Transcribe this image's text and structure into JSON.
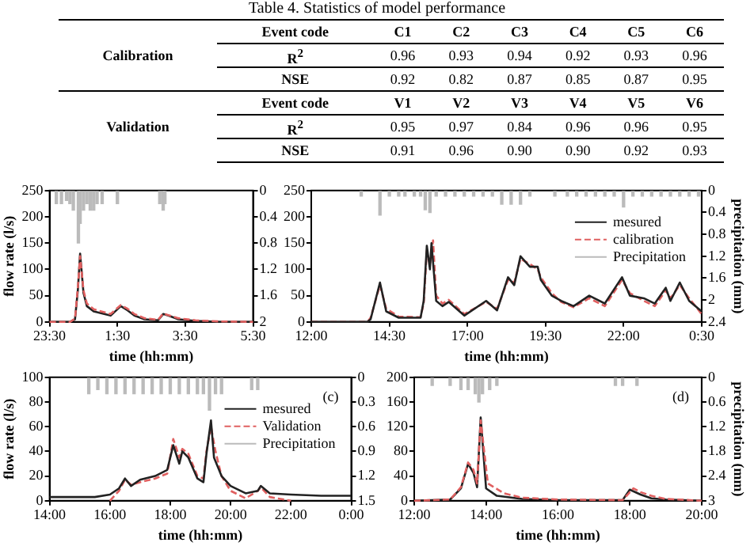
{
  "chart_data": [
    {
      "type": "other",
      "title": "Table 4. Statistics of model performance",
      "annotations": [
        "Calibration",
        "Event code",
        "C1",
        "C2",
        "C3",
        "C4",
        "C5",
        "C6",
        "R$^{2}$",
        "0.96",
        "0.93",
        "0.94",
        "0.92",
        "0.93",
        "0.96",
        "NSE",
        "0.92",
        "0.82",
        "0.87",
        "0.85",
        "0.87",
        "0.95",
        "Validation",
        "Event code",
        "V1",
        "V2",
        "V3",
        "V4",
        "V5",
        "V6",
        "R$^{2}$",
        "0.95",
        "0.97",
        "0.84",
        "0.96",
        "0.96",
        "0.95",
        "NSE",
        "0.91",
        "0.96",
        "0.90",
        "0.90",
        "0.92",
        "0.93"
      ]
    },
    {
      "type": "line",
      "xlabel": "time (hh:mm)",
      "ylabel": "flow rate (l/s)",
      "marker": "none",
      "xlim": [
        "--01-01T23:30",
        "--01-02T05:30"
      ],
      "xticks": [
        {
          "value": "--01-01T23:30",
          "label": "23:30"
        },
        {
          "value": "--01-02T01:30",
          "label": "1:30"
        },
        {
          "value": "--01-02T03:30",
          "label": "3:30"
        },
        {
          "value": "--01-02T05:30",
          "label": "5:30"
        }
      ],
      "ylim": [
        0,
        250
      ],
      "yticks": [
        0,
        50,
        100,
        150,
        200,
        250
      ],
      "y2lim": [
        2,
        0
      ],
      "y2ticks": [
        0,
        0.4,
        0.8,
        1.2,
        1.6,
        2
      ],
      "series": [
        {
          "type": "bar",
          "axis": "y2",
          "color": "#bbbbbb",
          "x": [
            "--01-01T23:42",
            "--01-01T23:51",
            "--01-02T00:00",
            "--01-02T00:06",
            "--01-02T00:12",
            "--01-02T00:18",
            "--01-02T00:21",
            "--01-02T00:24",
            "--01-02T00:30",
            "--01-02T00:36",
            "--01-02T00:42",
            "--01-02T00:48",
            "--01-02T00:54",
            "--01-02T01:03",
            "--01-02T01:30",
            "--01-02T02:45",
            "--01-02T02:51",
            "--01-02T02:54"
          ],
          "values": [
            0.2,
            0.2,
            0.15,
            0.2,
            0.3,
            null,
            0.8,
            0.5,
            0.3,
            0.2,
            0.3,
            0.3,
            0.2,
            0.2,
            0.2,
            0.2,
            0.3,
            0.2
          ]
        },
        {
          "color": "#e06060",
          "line_style": "dashed",
          "x": [
            "--01-01T23:30",
            "--01-02T00:06",
            "--01-02T00:15",
            "--01-02T00:20",
            "--01-02T00:24",
            "--01-02T00:30",
            "--01-02T00:36",
            "--01-02T00:48",
            "--01-02T01:18",
            "--01-02T01:36",
            "--01-02T01:48",
            "--01-02T02:00",
            "--01-02T02:18",
            "--01-02T02:42",
            "--01-02T02:51",
            "--01-02T03:00",
            "--01-02T03:18",
            "--01-02T03:48",
            "--01-02T04:30",
            "--01-02T05:30"
          ],
          "values": [
            0,
            0,
            6,
            65,
            125,
            60,
            35,
            24,
            15,
            32,
            25,
            15,
            7,
            4,
            16,
            13,
            7,
            3,
            1,
            0
          ]
        },
        {
          "color": "#222222",
          "line_style": "solid",
          "x": [
            "--01-01T23:30",
            "--01-02T00:06",
            "--01-02T00:15",
            "--01-02T00:20",
            "--01-02T00:24",
            "--01-02T00:30",
            "--01-02T00:36",
            "--01-02T00:48",
            "--01-02T01:18",
            "--01-02T01:36",
            "--01-02T01:48",
            "--01-02T02:00",
            "--01-02T02:18",
            "--01-02T02:42",
            "--01-02T02:51",
            "--01-02T03:00",
            "--01-02T03:18",
            "--01-02T03:48",
            "--01-02T04:30",
            "--01-02T05:30"
          ],
          "values": [
            0,
            0,
            5,
            60,
            130,
            55,
            30,
            20,
            12,
            30,
            22,
            12,
            5,
            3,
            15,
            12,
            5,
            2,
            0,
            0
          ]
        }
      ]
    },
    {
      "type": "line",
      "xlabel": "time (hh:mm)",
      "y2label": "precipitation (mm)",
      "marker": "none",
      "legend": "top right",
      "xlim": [
        "--01-01T12:00",
        "--01-02T00:30"
      ],
      "xticks": [
        {
          "value": "--01-01T12:00",
          "label": "12:00"
        },
        {
          "value": "--01-01T14:30",
          "label": "14:30"
        },
        {
          "value": "--01-01T17:00",
          "label": "17:00"
        },
        {
          "value": "--01-01T19:30",
          "label": "19:30"
        },
        {
          "value": "--01-01T22:00",
          "label": "22:00"
        },
        {
          "value": "--01-02T00:30",
          "label": "0:30"
        }
      ],
      "ylim": [
        0,
        250
      ],
      "yticks": [
        0,
        50,
        100,
        150,
        200,
        250
      ],
      "y2lim": [
        2.4,
        0
      ],
      "y2ticks": [
        0,
        0.4,
        0.8,
        1.2,
        1.6,
        2,
        2.4
      ],
      "series": [
        {
          "name": "mesured",
          "color": "#222222",
          "line_style": "solid",
          "x": [
            "--01-01T12:00",
            "--01-01T13:48",
            "--01-01T13:54",
            "--01-01T14:12",
            "--01-01T14:24",
            "--01-01T14:48",
            "--01-01T15:30",
            "--01-01T15:36",
            "--01-01T15:42",
            "--01-01T15:48",
            "--01-01T15:51",
            "--01-01T16:00",
            "--01-01T16:12",
            "--01-01T16:24",
            "--01-01T16:54",
            "--01-01T17:36",
            "--01-01T17:57",
            "--01-01T18:18",
            "--01-01T18:30",
            "--01-01T18:42",
            "--01-01T19:00",
            "--01-01T19:15",
            "--01-01T19:21",
            "--01-01T19:42",
            "--01-01T20:00",
            "--01-01T20:24",
            "--01-01T20:54",
            "--01-01T21:24",
            "--01-01T21:57",
            "--01-01T22:12",
            "--01-01T22:39",
            "--01-01T23:00",
            "--01-01T23:21",
            "--01-01T23:30",
            "--01-01T23:48",
            "--01-02T00:06",
            "--01-02T00:30"
          ],
          "values": [
            0,
            0,
            5,
            75,
            20,
            8,
            8,
            40,
            145,
            100,
            150,
            40,
            30,
            38,
            12,
            40,
            22,
            85,
            70,
            125,
            105,
            105,
            80,
            50,
            40,
            30,
            50,
            35,
            85,
            50,
            45,
            35,
            65,
            40,
            75,
            40,
            20
          ]
        },
        {
          "name": "calibration",
          "color": "#e06060",
          "line_style": "dashed",
          "x": [
            "--01-01T12:00",
            "--01-01T13:48",
            "--01-01T13:54",
            "--01-01T14:12",
            "--01-01T14:24",
            "--01-01T14:48",
            "--01-01T15:30",
            "--01-01T15:36",
            "--01-01T15:42",
            "--01-01T15:48",
            "--01-01T15:54",
            "--01-01T16:00",
            "--01-01T16:12",
            "--01-01T16:24",
            "--01-01T16:54",
            "--01-01T17:36",
            "--01-01T17:57",
            "--01-01T18:18",
            "--01-01T18:30",
            "--01-01T18:42",
            "--01-01T19:00",
            "--01-01T19:15",
            "--01-01T19:21",
            "--01-01T19:42",
            "--01-01T20:00",
            "--01-01T20:24",
            "--01-01T20:54",
            "--01-01T21:24",
            "--01-01T21:57",
            "--01-01T22:12",
            "--01-01T22:39",
            "--01-01T23:00",
            "--01-01T23:21",
            "--01-01T23:30",
            "--01-01T23:48",
            "--01-02T00:06",
            "--01-02T00:30"
          ],
          "values": [
            0,
            0,
            8,
            70,
            25,
            10,
            9,
            35,
            135,
            110,
            155,
            50,
            35,
            42,
            15,
            38,
            25,
            80,
            75,
            120,
            110,
            100,
            85,
            55,
            38,
            28,
            45,
            30,
            80,
            55,
            40,
            30,
            60,
            45,
            70,
            45,
            15
          ]
        },
        {
          "name": "Precipitation",
          "type": "bar",
          "axis": "y2",
          "color": "#bbbbbb",
          "x": [
            "--01-01T13:36",
            "--01-01T14:12",
            "--01-01T14:30",
            "--01-01T14:48",
            "--01-01T15:00",
            "--01-01T15:18",
            "--01-01T15:30",
            "--01-01T15:39",
            "--01-01T15:48",
            "--01-01T16:00",
            "--01-01T16:18",
            "--01-01T16:36",
            "--01-01T16:54",
            "--01-01T17:12",
            "--01-01T17:30",
            "--01-01T17:48",
            "--01-01T18:06",
            "--01-01T18:24",
            "--01-01T18:42",
            "--01-01T19:00",
            "--01-01T19:48",
            "--01-01T20:12",
            "--01-01T20:30",
            "--01-01T20:48",
            "--01-01T21:06",
            "--01-01T21:24",
            "--01-01T21:42",
            "--01-01T22:00",
            "--01-01T22:18",
            "--01-01T22:36",
            "--01-01T22:54",
            "--01-01T23:12",
            "--01-01T23:30",
            "--01-01T23:48",
            "--01-02T00:06",
            "--01-02T00:24"
          ],
          "values": [
            0.1,
            0.45,
            0.1,
            0.1,
            0.1,
            0.1,
            0.1,
            0.35,
            0.4,
            0.1,
            0.1,
            0.1,
            0.1,
            0.1,
            0.1,
            0.1,
            0.25,
            0.25,
            0.25,
            0.1,
            0.1,
            0.1,
            0.1,
            0.1,
            0.1,
            0.1,
            0.1,
            0.3,
            0.1,
            0.1,
            0.1,
            0.1,
            0.1,
            0.1,
            0.1,
            0.1
          ]
        }
      ]
    },
    {
      "type": "line",
      "xlabel": "time (hh:mm)",
      "ylabel": "flow rate (l/s)",
      "marker": "none",
      "legend": "top right",
      "annotations": [
        "(c)"
      ],
      "xlim": [
        14,
        24
      ],
      "xticks": [
        {
          "value": 14,
          "label": "14:00"
        },
        {
          "value": 16,
          "label": "16:00"
        },
        {
          "value": 18,
          "label": "18:00"
        },
        {
          "value": 20,
          "label": "20:00"
        },
        {
          "value": 22,
          "label": "22:00"
        },
        {
          "value": 24,
          "label": "0:00"
        }
      ],
      "ylim": [
        0,
        100
      ],
      "yticks": [
        0,
        20,
        40,
        60,
        80,
        100
      ],
      "y2lim": [
        1.5,
        0
      ],
      "y2ticks": [
        0,
        0.3,
        0.6,
        0.9,
        1.2,
        1.5
      ],
      "series": [
        {
          "name": "mesured",
          "color": "#222222",
          "line_style": "solid",
          "x": [
            14,
            15.5,
            16,
            16.3,
            16.5,
            16.7,
            17,
            17.5,
            17.9,
            18.1,
            18.3,
            18.4,
            18.6,
            18.9,
            19.1,
            19.2,
            19.35,
            19.45,
            19.7,
            20,
            20.5,
            20.9,
            21,
            21.3,
            22,
            23,
            24
          ],
          "values": [
            3,
            3,
            5,
            10,
            18,
            12,
            17,
            20,
            25,
            45,
            30,
            40,
            35,
            18,
            15,
            38,
            65,
            35,
            20,
            12,
            6,
            8,
            12,
            6,
            5,
            4,
            4
          ]
        },
        {
          "name": "Validation",
          "color": "#e06060",
          "line_style": "dashed",
          "x": [
            16,
            16.3,
            16.5,
            16.7,
            17,
            17.5,
            17.9,
            18.1,
            18.3,
            18.4,
            18.6,
            18.9,
            19.1,
            19.2,
            19.35,
            19.5,
            19.7,
            20,
            20.5,
            20.9,
            21,
            21.3,
            22
          ],
          "values": [
            0,
            8,
            17,
            13,
            15,
            18,
            22,
            50,
            35,
            42,
            38,
            20,
            18,
            40,
            60,
            40,
            20,
            8,
            2,
            8,
            11,
            3,
            0
          ]
        },
        {
          "name": "Precipitation",
          "type": "bar",
          "axis": "y2",
          "color": "#bbbbbb",
          "x": [
            15.3,
            15.6,
            15.9,
            16.2,
            16.5,
            16.8,
            17.1,
            17.4,
            17.7,
            18.0,
            18.3,
            18.6,
            18.9,
            19.1,
            19.3,
            19.5,
            19.7,
            20.7,
            20.9
          ],
          "values": [
            0.2,
            0.15,
            0.2,
            0.2,
            0.2,
            0.2,
            0.2,
            0.2,
            0.2,
            0.2,
            0.2,
            0.2,
            0.2,
            0.2,
            0.4,
            0.2,
            0.2,
            0.15,
            0.15
          ]
        }
      ]
    },
    {
      "type": "line",
      "xlabel": "time (hh:mm)",
      "y2label": "precipitation (mm)",
      "marker": "none",
      "annotations": [
        "(d)"
      ],
      "xlim": [
        12,
        20
      ],
      "xticks": [
        {
          "value": 12,
          "label": "12:00"
        },
        {
          "value": 14,
          "label": "14:00"
        },
        {
          "value": 16,
          "label": "16:00"
        },
        {
          "value": 18,
          "label": "18:00"
        },
        {
          "value": 20,
          "label": "20:00"
        }
      ],
      "ylim": [
        0,
        200
      ],
      "yticks": [
        0,
        40,
        80,
        120,
        160,
        200
      ],
      "y2lim": [
        3,
        0
      ],
      "y2ticks": [
        0,
        0.6,
        1.2,
        1.8,
        2.4,
        3
      ],
      "series": [
        {
          "type": "bar",
          "axis": "y2",
          "color": "#bbbbbb",
          "x": [
            12.5,
            13.0,
            13.3,
            13.5,
            13.7,
            13.8,
            13.9,
            14.1,
            14.3,
            17.6,
            17.8,
            18.2
          ],
          "values": [
            0.2,
            0.2,
            0.3,
            0.3,
            0.4,
            0.6,
            0.4,
            0.3,
            0.2,
            0.2,
            0.2,
            0.2
          ]
        },
        {
          "color": "#e06060",
          "line_style": "dashed",
          "x": [
            12,
            13,
            13.3,
            13.5,
            13.65,
            13.75,
            13.85,
            14.05,
            14.5,
            15,
            16,
            17.8,
            18.1,
            18.3,
            18.6,
            19,
            20
          ],
          "values": [
            0,
            2,
            22,
            62,
            50,
            28,
            130,
            28,
            12,
            5,
            2,
            1,
            20,
            14,
            8,
            3,
            0
          ]
        },
        {
          "color": "#222222",
          "line_style": "solid",
          "x": [
            12,
            13,
            13.3,
            13.5,
            13.65,
            13.75,
            13.85,
            14.0,
            14.3,
            15,
            16,
            17.8,
            18,
            18.3,
            18.6,
            19,
            20
          ],
          "values": [
            0,
            2,
            20,
            60,
            45,
            22,
            135,
            20,
            8,
            3,
            1,
            1,
            18,
            10,
            4,
            2,
            0
          ]
        }
      ]
    }
  ]
}
